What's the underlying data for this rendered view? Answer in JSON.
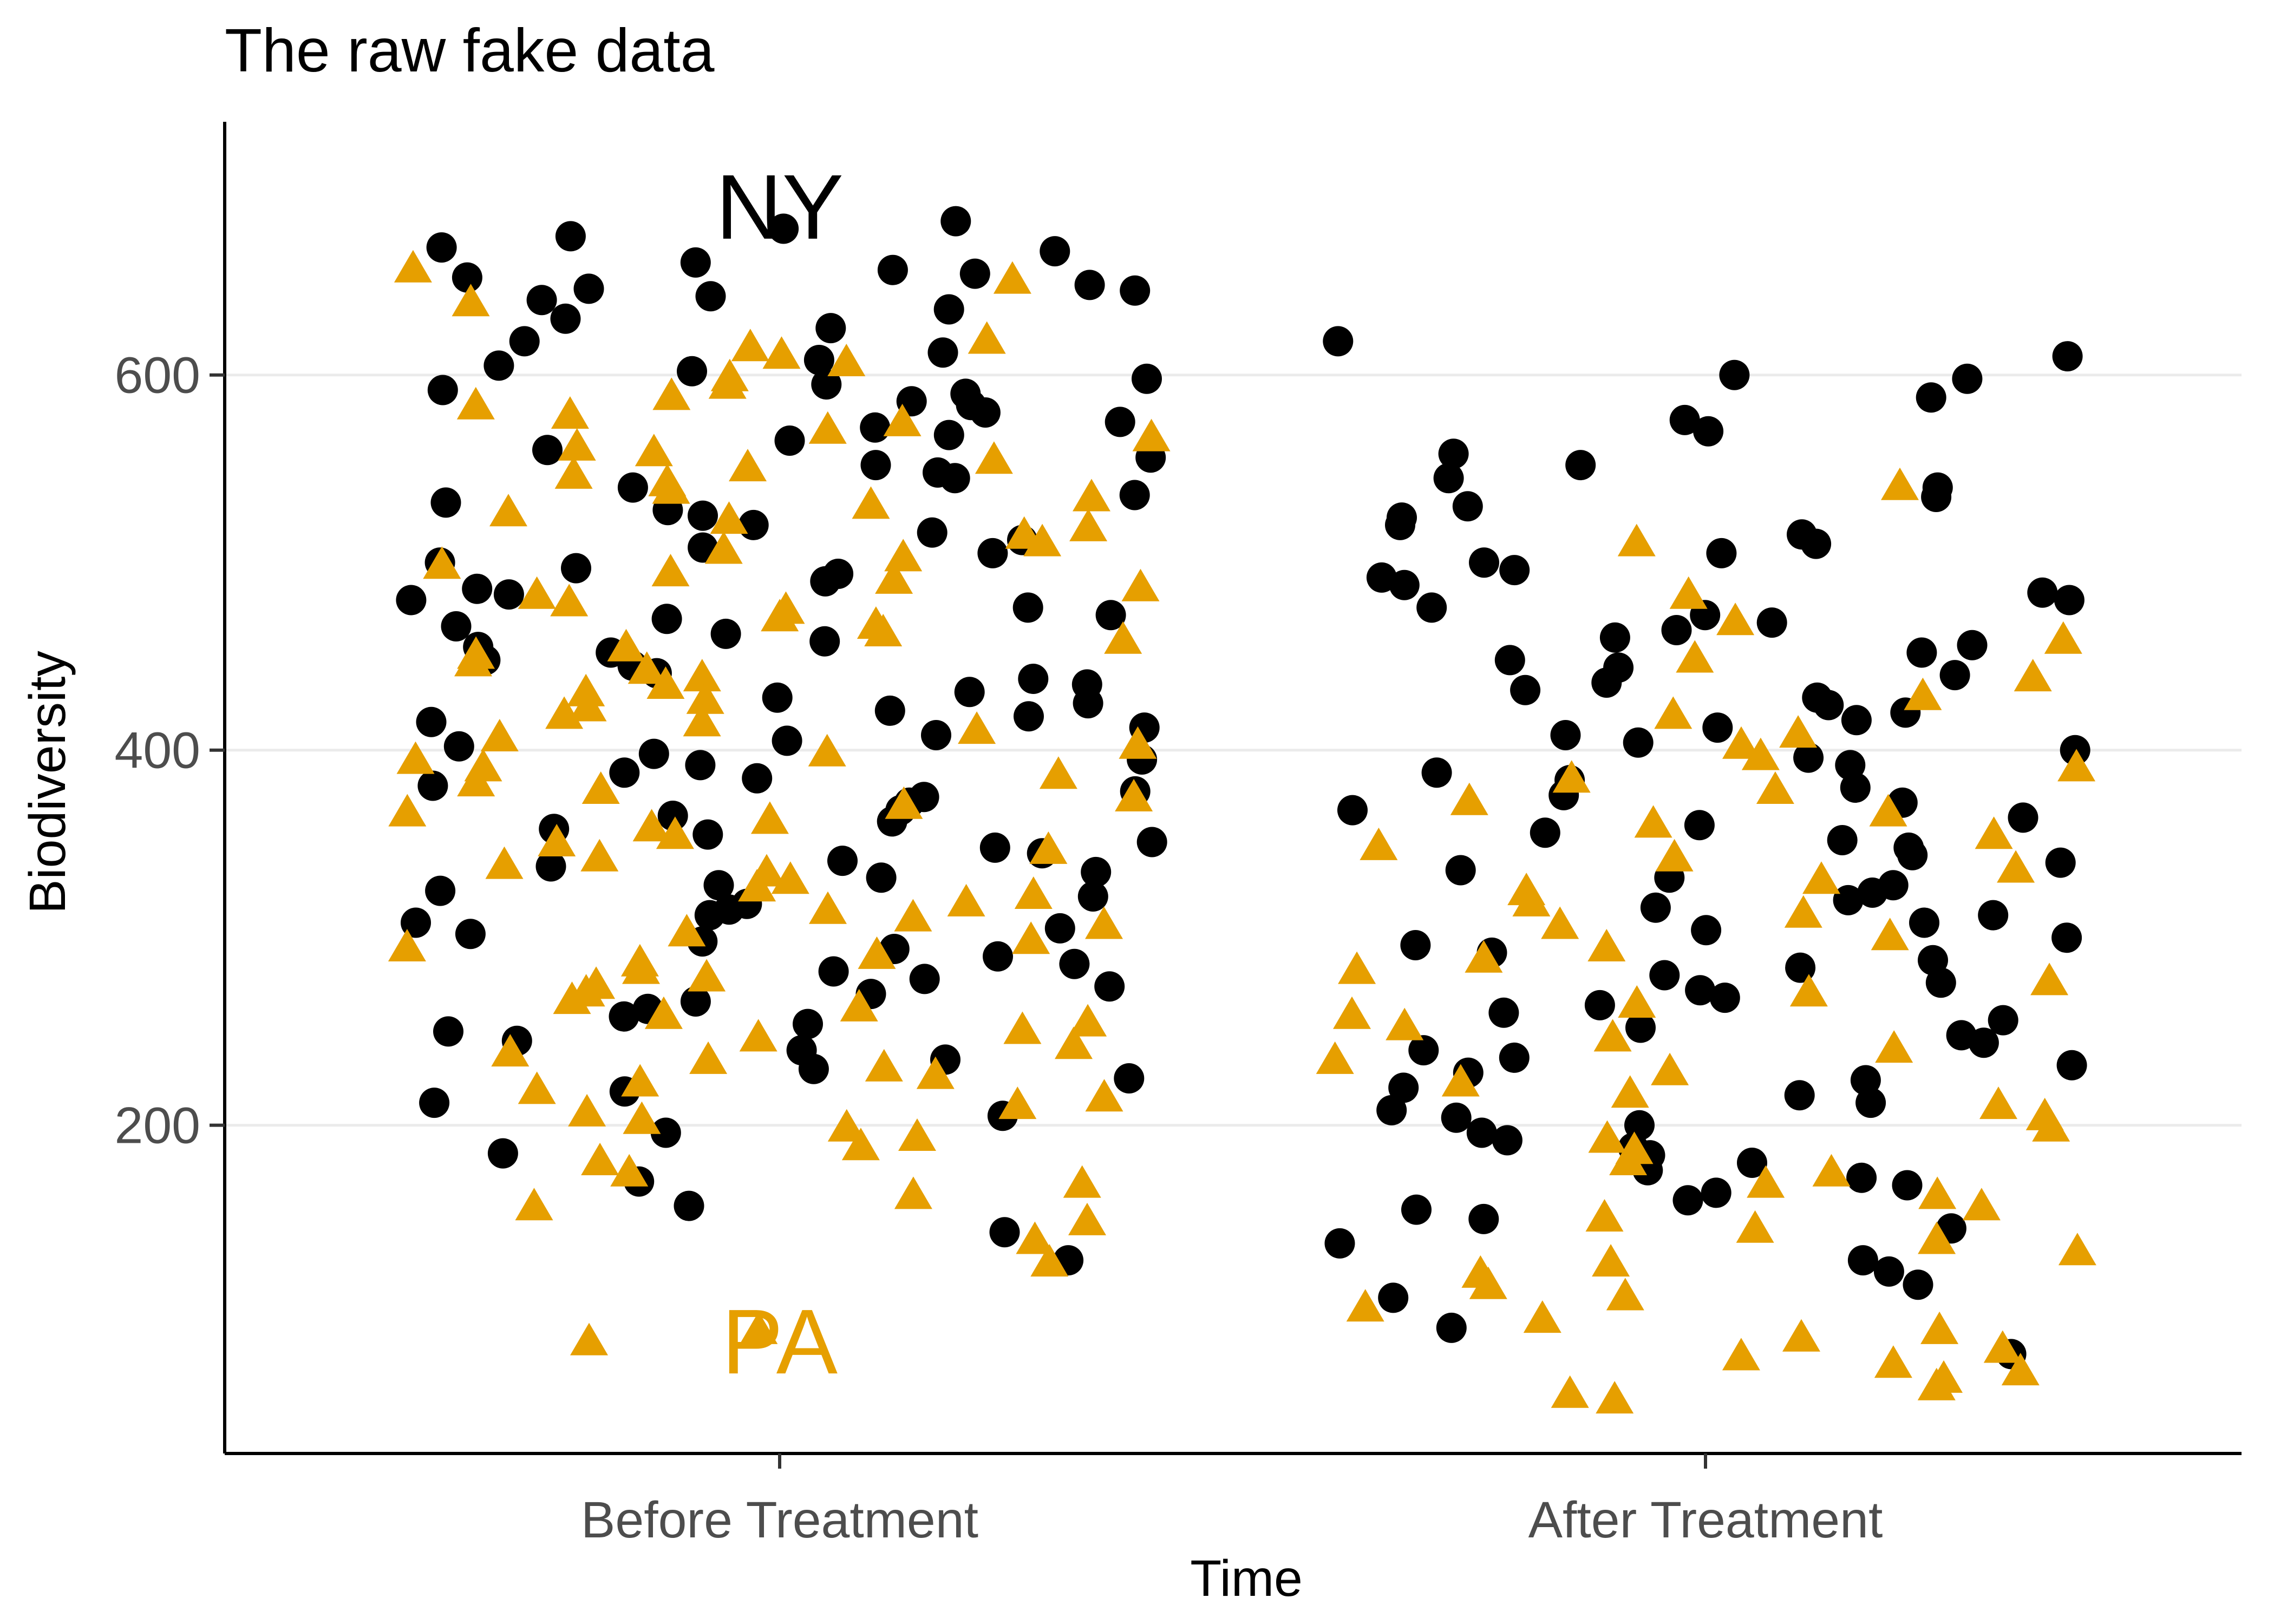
{
  "chart_data": {
    "type": "scatter",
    "title": "The raw fake data",
    "xlabel": "Time",
    "ylabel": "Biodiversity",
    "categories": [
      "Before Treatment",
      "After Treatment"
    ],
    "ylim": [
      25,
      735
    ],
    "yticks": [
      200,
      400,
      600
    ],
    "grid": "horizontal major gridlines only",
    "legend": "none",
    "jitter": "points spread horizontally within each category",
    "annotations": [
      {
        "text": "NY",
        "x": "Before Treatment",
        "y": 690,
        "color": "#000000"
      },
      {
        "text": "PA",
        "x": "Before Treatment",
        "y": 85,
        "color": "#E69F00"
      }
    ],
    "series": [
      {
        "group": "NY",
        "shape": "circle",
        "color": "#000000",
        "points": [
          {
            "x": "Before Treatment",
            "y": [
              682,
              678,
              674,
              668,
              666,
              660,
              656,
              654,
              652,
              648,
              646,
              645,
              642,
              640,
              635,
              630,
              625,
              618,
              612,
              608,
              605,
              602,
              598,
              595,
              592,
              590,
              586,
              584,
              580,
              575,
              572,
              568,
              565,
              560,
              556,
              552,
              548,
              545,
              540,
              536,
              532,
              528,
              525,
              520,
              516,
              512,
              508,
              505,
              500,
              497,
              494,
              490,
              486,
              483,
              480,
              476,
              472,
              470,
              466,
              462,
              458,
              455,
              452,
              448,
              445,
              441,
              438,
              435,
              431,
              428,
              425,
              421,
              418,
              415,
              412,
              408,
              405,
              402,
              398,
              395,
              392,
              388,
              385,
              381,
              378,
              375,
              372,
              368,
              365,
              362,
              358,
              355,
              351,
              348,
              345,
              341,
              338,
              335,
              332,
              328,
              325,
              322,
              318,
              315,
              312,
              308,
              305,
              302,
              298,
              294,
              290,
              286,
              282,
              278,
              274,
              270,
              266,
              262,
              258,
              254,
              250,
              245,
              240,
              235,
              230,
              225,
              218,
              212,
              205,
              196,
              185,
              170,
              157,
              143,
              128
            ]
          },
          {
            "x": "After Treatment",
            "y": [
              618,
              610,
              600,
              598,
              588,
              576,
              570,
              558,
              552,
              545,
              540,
              535,
              530,
              524,
              520,
              515,
              510,
              505,
              500,
              496,
              492,
              488,
              484,
              480,
              476,
              472,
              468,
              464,
              460,
              456,
              452,
              448,
              444,
              440,
              436,
              432,
              428,
              424,
              420,
              416,
              412,
              408,
              404,
              400,
              396,
              392,
              388,
              384,
              380,
              376,
              372,
              368,
              364,
              360,
              356,
              352,
              348,
              344,
              340,
              336,
              332,
              328,
              324,
              320,
              316,
              312,
              308,
              304,
              300,
              296,
              292,
              288,
              284,
              280,
              276,
              272,
              268,
              264,
              260,
              256,
              252,
              248,
              244,
              240,
              236,
              232,
              228,
              224,
              220,
              216,
              212,
              208,
              204,
              200,
              196,
              192,
              188,
              184,
              180,
              176,
              172,
              168,
              164,
              160,
              155,
              150,
              145,
              137,
              128,
              122,
              115,
              108,
              92,
              78
            ]
          }
        ]
      },
      {
        "group": "PA",
        "shape": "triangle",
        "color": "#E69F00",
        "points": [
          {
            "x": "Before Treatment",
            "y": [
              658,
              652,
              640,
              620,
              616,
              612,
              608,
              600,
              596,
              590,
              585,
              580,
              576,
              572,
              568,
              563,
              560,
              556,
              552,
              548,
              544,
              540,
              536,
              532,
              528,
              524,
              520,
              516,
              512,
              508,
              504,
              500,
              496,
              492,
              488,
              484,
              480,
              476,
              472,
              468,
              464,
              460,
              456,
              452,
              448,
              444,
              440,
              436,
              432,
              428,
              424,
              420,
              416,
              412,
              408,
              404,
              400,
              396,
              392,
              388,
              384,
              380,
              376,
              372,
              368,
              364,
              360,
              356,
              352,
              348,
              344,
              340,
              336,
              332,
              328,
              324,
              320,
              316,
              312,
              308,
              304,
              300,
              296,
              292,
              288,
              284,
              280,
              276,
              272,
              268,
              264,
              260,
              256,
              252,
              248,
              244,
              240,
              236,
              232,
              228,
              224,
              220,
              216,
              212,
              208,
              204,
              200,
              195,
              190,
              182,
              176,
              170,
              164,
              158,
              150,
              140,
              128,
              92,
              86
            ]
          },
          {
            "x": "After Treatment",
            "y": [
              542,
              512,
              484,
              470,
              460,
              450,
              440,
              430,
              420,
              410,
              404,
              398,
              392,
              386,
              380,
              374,
              368,
              362,
              356,
              350,
              344,
              338,
              332,
              326,
              320,
              314,
              308,
              302,
              296,
              290,
              284,
              278,
              272,
              266,
              260,
              254,
              248,
              242,
              236,
              230,
              224,
              218,
              212,
              206,
              200,
              194,
              188,
              182,
              176,
              170,
              164,
              158,
              152,
              146,
              140,
              134,
              128,
              122,
              116,
              110,
              104,
              98,
              92,
              88,
              82,
              78,
              74,
              70,
              66,
              62,
              58,
              55
            ]
          }
        ]
      }
    ]
  }
}
